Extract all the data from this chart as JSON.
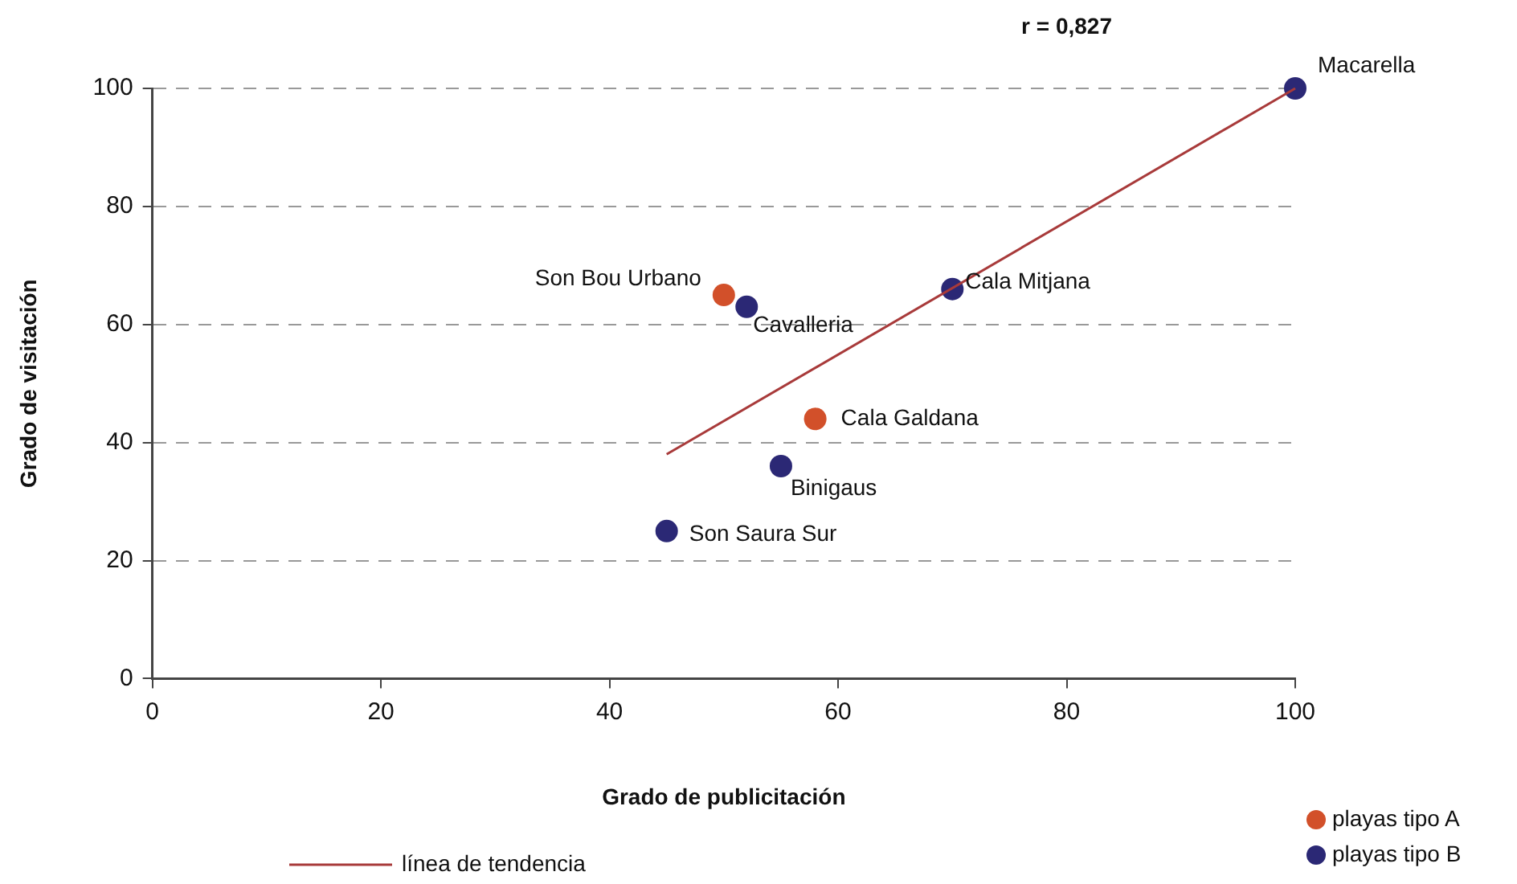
{
  "chart_data": {
    "type": "scatter",
    "xlabel": "Grado de publicitación",
    "ylabel": "Grado de visitación",
    "xlim": [
      0,
      100
    ],
    "xticks": [
      0,
      20,
      40,
      60,
      80,
      100
    ],
    "ylim": [
      0,
      100
    ],
    "yticks": [
      0,
      20,
      40,
      60,
      80,
      100
    ],
    "grid": "y",
    "legend": "bottom",
    "marker": "circle",
    "series": [
      {
        "name": "playas tipo A",
        "color": "#d2502a",
        "x": [
          50,
          58
        ],
        "values": [
          65,
          44
        ]
      },
      {
        "name": "playas tipo B",
        "color": "#2b2875",
        "x": [
          100,
          52,
          70,
          55,
          45
        ],
        "values": [
          100,
          63,
          66,
          36,
          25
        ]
      },
      {
        "name": "línea de tendencia",
        "type": "line",
        "line_style": "solid",
        "marker": "none",
        "color": "#a83a3a",
        "x": [
          45,
          100
        ],
        "values": [
          38,
          100
        ]
      }
    ],
    "annotations": [
      "r = 0,827",
      {
        "text": "Macarella",
        "x": 100,
        "y": 100
      },
      {
        "text": "Son Bou Urbano",
        "x": 50,
        "y": 65
      },
      {
        "text": "Cavalleria",
        "x": 52,
        "y": 63
      },
      {
        "text": "Cala Mitjana",
        "x": 70,
        "y": 66
      },
      {
        "text": "Cala Galdana",
        "x": 58,
        "y": 44
      },
      {
        "text": "Binigaus",
        "x": 55,
        "y": 36
      },
      {
        "text": "Son Saura Sur",
        "x": 45,
        "y": 25
      }
    ]
  }
}
